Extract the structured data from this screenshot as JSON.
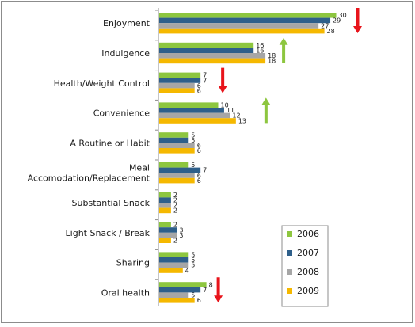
{
  "chart_data": {
    "type": "bar",
    "orientation": "horizontal",
    "title": "",
    "xlabel": "",
    "ylabel": "",
    "xlim": [
      0,
      32
    ],
    "grid": false,
    "legend_position": "bottom-right",
    "categories": [
      [
        "Enjoyment"
      ],
      [
        "Indulgence"
      ],
      [
        "Health/Weight Control"
      ],
      [
        "Convenience"
      ],
      [
        "A Routine or Habit"
      ],
      [
        "Meal",
        "Accomodation/Replacement"
      ],
      [
        "Substantial Snack"
      ],
      [
        "Light Snack / Break"
      ],
      [
        "Sharing"
      ],
      [
        "Oral health"
      ]
    ],
    "series": [
      {
        "name": "2006",
        "color": "#8dc63f",
        "values": [
          30,
          16,
          7,
          10,
          5,
          5,
          2,
          2,
          5,
          8
        ]
      },
      {
        "name": "2007",
        "color": "#2e5f8a",
        "values": [
          29,
          16,
          7,
          11,
          5,
          7,
          2,
          3,
          5,
          7
        ]
      },
      {
        "name": "2008",
        "color": "#a6a6a6",
        "values": [
          27,
          18,
          6,
          12,
          6,
          6,
          2,
          3,
          5,
          5
        ]
      },
      {
        "name": "2009",
        "color": "#f5b800",
        "values": [
          28,
          18,
          6,
          13,
          6,
          6,
          2,
          2,
          4,
          6
        ]
      }
    ],
    "trend_arrows": [
      {
        "category_index": 0,
        "direction": "down",
        "color": "#e8141b"
      },
      {
        "category_index": 1,
        "direction": "up",
        "color": "#8dc63f"
      },
      {
        "category_index": 2,
        "direction": "down",
        "color": "#e8141b"
      },
      {
        "category_index": 3,
        "direction": "up",
        "color": "#8dc63f"
      },
      {
        "category_index": 9,
        "direction": "down",
        "color": "#e8141b"
      }
    ]
  }
}
